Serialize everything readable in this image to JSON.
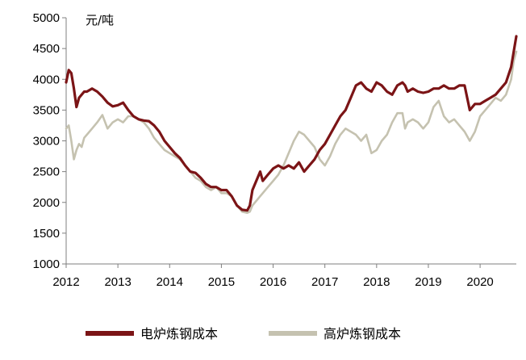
{
  "chart_data": {
    "type": "line",
    "title": "",
    "xlabel": "",
    "ylabel": "元/吨",
    "ylim": [
      1000,
      5000
    ],
    "xlim": [
      2012,
      2020.7
    ],
    "yticks": [
      "1000",
      "1500",
      "2000",
      "2500",
      "3000",
      "3500",
      "4000",
      "4500",
      "5000"
    ],
    "xticks": [
      "2012",
      "2013",
      "2014",
      "2015",
      "2016",
      "2017",
      "2018",
      "2019",
      "2020"
    ],
    "grid": false,
    "legend": "bottom",
    "series": [
      {
        "name": "电炉炼钢成本",
        "color": "#7b1416",
        "x": [
          2012.0,
          2012.05,
          2012.1,
          2012.15,
          2012.2,
          2012.25,
          2012.3,
          2012.35,
          2012.4,
          2012.5,
          2012.6,
          2012.7,
          2012.8,
          2012.9,
          2013.0,
          2013.1,
          2013.2,
          2013.3,
          2013.4,
          2013.5,
          2013.6,
          2013.7,
          2013.8,
          2013.9,
          2014.0,
          2014.1,
          2014.2,
          2014.3,
          2014.4,
          2014.5,
          2014.6,
          2014.7,
          2014.8,
          2014.9,
          2015.0,
          2015.1,
          2015.2,
          2015.3,
          2015.4,
          2015.5,
          2015.55,
          2015.6,
          2015.7,
          2015.75,
          2015.8,
          2015.9,
          2016.0,
          2016.1,
          2016.2,
          2016.3,
          2016.4,
          2016.5,
          2016.6,
          2016.7,
          2016.8,
          2016.9,
          2017.0,
          2017.1,
          2017.2,
          2017.3,
          2017.4,
          2017.5,
          2017.6,
          2017.7,
          2017.8,
          2017.9,
          2018.0,
          2018.1,
          2018.2,
          2018.3,
          2018.4,
          2018.5,
          2018.55,
          2018.6,
          2018.7,
          2018.8,
          2018.9,
          2019.0,
          2019.1,
          2019.2,
          2019.3,
          2019.4,
          2019.5,
          2019.6,
          2019.7,
          2019.8,
          2019.9,
          2020.0,
          2020.1,
          2020.2,
          2020.3,
          2020.4,
          2020.5,
          2020.6,
          2020.65,
          2020.7
        ],
        "values": [
          3950,
          4150,
          4100,
          3850,
          3550,
          3700,
          3750,
          3800,
          3800,
          3850,
          3800,
          3720,
          3620,
          3560,
          3580,
          3620,
          3500,
          3400,
          3350,
          3330,
          3320,
          3250,
          3150,
          3000,
          2900,
          2800,
          2720,
          2600,
          2500,
          2480,
          2400,
          2300,
          2250,
          2250,
          2200,
          2200,
          2100,
          1950,
          1880,
          1870,
          1950,
          2200,
          2400,
          2500,
          2350,
          2450,
          2550,
          2600,
          2550,
          2600,
          2550,
          2650,
          2500,
          2600,
          2700,
          2850,
          2950,
          3100,
          3250,
          3400,
          3500,
          3700,
          3900,
          3950,
          3850,
          3800,
          3950,
          3900,
          3800,
          3750,
          3900,
          3950,
          3900,
          3800,
          3850,
          3800,
          3780,
          3800,
          3850,
          3850,
          3900,
          3850,
          3850,
          3900,
          3900,
          3500,
          3600,
          3600,
          3650,
          3700,
          3750,
          3850,
          3950,
          4200,
          4450,
          4700
        ]
      },
      {
        "name": "高炉炼钢成本",
        "color": "#c5c2b0",
        "x": [
          2012.0,
          2012.05,
          2012.1,
          2012.15,
          2012.2,
          2012.25,
          2012.3,
          2012.35,
          2012.4,
          2012.5,
          2012.6,
          2012.7,
          2012.8,
          2012.9,
          2013.0,
          2013.1,
          2013.2,
          2013.3,
          2013.4,
          2013.5,
          2013.6,
          2013.7,
          2013.8,
          2013.9,
          2014.0,
          2014.1,
          2014.2,
          2014.3,
          2014.4,
          2014.5,
          2014.6,
          2014.7,
          2014.8,
          2014.9,
          2015.0,
          2015.1,
          2015.2,
          2015.3,
          2015.4,
          2015.5,
          2015.55,
          2015.6,
          2015.7,
          2015.75,
          2015.8,
          2015.9,
          2016.0,
          2016.1,
          2016.2,
          2016.3,
          2016.4,
          2016.5,
          2016.6,
          2016.7,
          2016.8,
          2016.9,
          2017.0,
          2017.1,
          2017.2,
          2017.3,
          2017.4,
          2017.5,
          2017.6,
          2017.7,
          2017.8,
          2017.9,
          2018.0,
          2018.1,
          2018.2,
          2018.3,
          2018.4,
          2018.5,
          2018.55,
          2018.6,
          2018.7,
          2018.8,
          2018.9,
          2019.0,
          2019.1,
          2019.2,
          2019.3,
          2019.4,
          2019.5,
          2019.6,
          2019.7,
          2019.8,
          2019.9,
          2020.0,
          2020.1,
          2020.2,
          2020.3,
          2020.4,
          2020.5,
          2020.6,
          2020.65,
          2020.7
        ],
        "values": [
          3200,
          3250,
          3000,
          2700,
          2850,
          2950,
          2900,
          3050,
          3100,
          3200,
          3300,
          3420,
          3200,
          3300,
          3350,
          3300,
          3400,
          3400,
          3350,
          3300,
          3200,
          3050,
          2950,
          2850,
          2800,
          2750,
          2700,
          2600,
          2500,
          2400,
          2350,
          2250,
          2200,
          2250,
          2150,
          2150,
          2100,
          1950,
          1850,
          1830,
          1850,
          1950,
          2050,
          2100,
          2150,
          2250,
          2350,
          2450,
          2600,
          2800,
          3000,
          3150,
          3100,
          3000,
          2900,
          2700,
          2600,
          2750,
          2950,
          3100,
          3200,
          3150,
          3100,
          3000,
          3100,
          2800,
          2850,
          3000,
          3100,
          3300,
          3450,
          3450,
          3200,
          3300,
          3350,
          3300,
          3200,
          3300,
          3550,
          3650,
          3400,
          3300,
          3350,
          3250,
          3150,
          3000,
          3150,
          3400,
          3500,
          3600,
          3700,
          3650,
          3750,
          4000,
          4300,
          4450
        ]
      }
    ]
  }
}
